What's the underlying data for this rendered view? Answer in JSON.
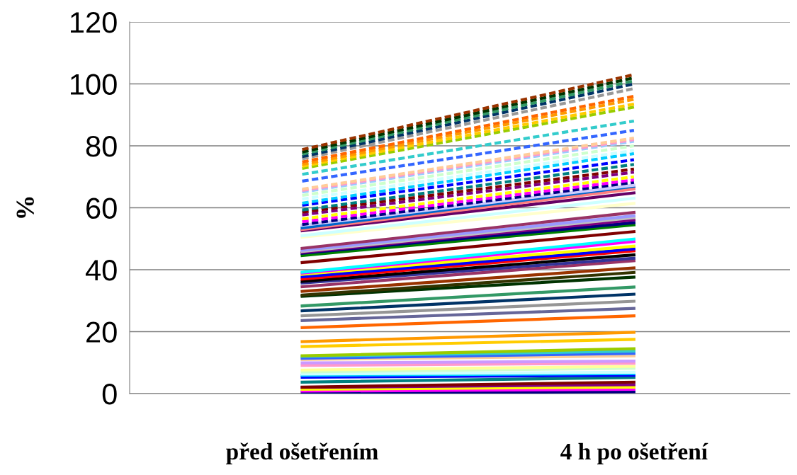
{
  "chart_data": {
    "type": "line",
    "ylabel": "%",
    "categories": [
      "před ošetřením",
      "4 h po ošetření"
    ],
    "ylim": [
      0,
      120
    ],
    "yticks": [
      0,
      20,
      40,
      60,
      80,
      100,
      120
    ],
    "grid": "y",
    "legend": false,
    "marker": "none",
    "line_style": "solid",
    "series": [
      {
        "color": "#000080",
        "values": [
          0.2,
          0.6
        ]
      },
      {
        "color": "#ff00ff",
        "values": [
          0.8,
          1.4
        ]
      },
      {
        "color": "#ffff00",
        "values": [
          1.4,
          2.1
        ]
      },
      {
        "color": "#800080",
        "values": [
          2.0,
          2.9
        ]
      },
      {
        "color": "#800000",
        "values": [
          2.1,
          3.7
        ]
      },
      {
        "color": "#008080",
        "values": [
          3.7,
          5.2
        ]
      },
      {
        "color": "#0000ff",
        "values": [
          5.3,
          5.9
        ]
      },
      {
        "color": "#00ccff",
        "values": [
          5.9,
          6.5
        ]
      },
      {
        "color": "#ccffff",
        "values": [
          6.3,
          6.9
        ]
      },
      {
        "color": "#ccffcc",
        "values": [
          7.0,
          8.2
        ]
      },
      {
        "color": "#ffff99",
        "values": [
          7.6,
          8.8
        ]
      },
      {
        "color": "#ff99cc",
        "values": [
          9.1,
          9.8
        ]
      },
      {
        "color": "#cc99ff",
        "values": [
          9.9,
          10.5
        ]
      },
      {
        "color": "#ffcc99",
        "values": [
          11.0,
          12.2
        ]
      },
      {
        "color": "#3366ff",
        "values": [
          11.4,
          13.0
        ]
      },
      {
        "color": "#33cccc",
        "values": [
          12.0,
          13.7
        ]
      },
      {
        "color": "#99cc00",
        "values": [
          12.2,
          14.5
        ]
      },
      {
        "color": "#ffcc00",
        "values": [
          15.2,
          17.5
        ]
      },
      {
        "color": "#ff9900",
        "values": [
          16.8,
          19.8
        ]
      },
      {
        "color": "#ff6600",
        "values": [
          21.3,
          25.1
        ]
      },
      {
        "color": "#666699",
        "values": [
          23.6,
          27.5
        ]
      },
      {
        "color": "#969696",
        "values": [
          25.1,
          29.8
        ]
      },
      {
        "color": "#003366",
        "values": [
          26.7,
          32.1
        ]
      },
      {
        "color": "#339966",
        "values": [
          28.3,
          34.4
        ]
      },
      {
        "color": "#003300",
        "values": [
          31.4,
          37.6
        ]
      },
      {
        "color": "#333300",
        "values": [
          31.8,
          39.1
        ]
      },
      {
        "color": "#993300",
        "values": [
          33.0,
          40.6
        ]
      },
      {
        "color": "#993366",
        "values": [
          34.5,
          42.9
        ]
      },
      {
        "color": "#333399",
        "values": [
          35.7,
          43.7
        ]
      },
      {
        "color": "#000000",
        "values": [
          36.2,
          44.8
        ]
      },
      {
        "color": "#ff0000",
        "values": [
          37.0,
          46.1
        ]
      },
      {
        "color": "#0000ff",
        "values": [
          37.7,
          46.7
        ]
      },
      {
        "color": "#ffff00",
        "values": [
          38.5,
          47.6
        ]
      },
      {
        "color": "#ff00ff",
        "values": [
          38.9,
          49.1
        ]
      },
      {
        "color": "#00ffff",
        "values": [
          39.2,
          49.9
        ]
      },
      {
        "color": "#800000",
        "values": [
          42.3,
          52.3
        ]
      },
      {
        "color": "#008000",
        "values": [
          44.6,
          54.5
        ]
      },
      {
        "color": "#000080",
        "values": [
          45.3,
          55.2
        ]
      },
      {
        "color": "#800080",
        "values": [
          45.6,
          56.1
        ]
      },
      {
        "color": "#c0c0c0",
        "values": [
          45.9,
          56.8
        ]
      },
      {
        "color": "#9999ff",
        "values": [
          46.3,
          57.4
        ]
      },
      {
        "color": "#993366",
        "values": [
          46.9,
          58.5
        ]
      },
      {
        "color": "#ffffcc",
        "values": [
          50.5,
          61.4
        ]
      },
      {
        "color": "#ccffff",
        "values": [
          51.0,
          63.1
        ]
      },
      {
        "color": "#660066",
        "values": [
          52.6,
          64.8
        ]
      },
      {
        "color": "#ff8080",
        "values": [
          53.0,
          66.1
        ]
      },
      {
        "color": "#0066cc",
        "values": [
          53.5,
          66.9
        ]
      },
      {
        "color": "#ccccff",
        "values": [
          54.3,
          67.3
        ]
      },
      {
        "color": "#000080",
        "line_style": "dashed",
        "values": [
          54.6,
          68.2
        ]
      },
      {
        "color": "#ff00ff",
        "line_style": "dashed",
        "values": [
          55.5,
          69.0
        ]
      },
      {
        "color": "#ffff00",
        "line_style": "dashed",
        "values": [
          56.4,
          70.0
        ]
      },
      {
        "color": "#800080",
        "line_style": "dashed",
        "values": [
          57.7,
          71.5
        ]
      },
      {
        "color": "#800000",
        "line_style": "dashed",
        "values": [
          58.6,
          72.5
        ]
      },
      {
        "color": "#008080",
        "line_style": "dashed",
        "values": [
          59.3,
          74.0
        ]
      },
      {
        "color": "#0000ff",
        "line_style": "dashed",
        "values": [
          60.8,
          75.5
        ]
      },
      {
        "color": "#00ccff",
        "line_style": "dashed",
        "values": [
          61.5,
          77.5
        ]
      },
      {
        "color": "#ccffff",
        "line_style": "dashed",
        "values": [
          62.8,
          78.5
        ]
      },
      {
        "color": "#ccffcc",
        "line_style": "dashed",
        "values": [
          64.0,
          80.0
        ]
      },
      {
        "color": "#99ccff",
        "line_style": "dashed",
        "values": [
          65.1,
          81.5
        ]
      },
      {
        "color": "#ff99cc",
        "line_style": "dashed",
        "values": [
          65.6,
          82.0
        ]
      },
      {
        "color": "#ffcc99",
        "line_style": "dashed",
        "values": [
          66.0,
          82.5
        ]
      },
      {
        "color": "#3366ff",
        "line_style": "dashed",
        "values": [
          68.6,
          85.0
        ]
      },
      {
        "color": "#33cccc",
        "line_style": "dashed",
        "values": [
          70.8,
          88.0
        ]
      },
      {
        "color": "#99cc00",
        "line_style": "dashed",
        "values": [
          72.7,
          92.5
        ]
      },
      {
        "color": "#ffcc00",
        "line_style": "dashed",
        "values": [
          73.4,
          93.5
        ]
      },
      {
        "color": "#ff9900",
        "line_style": "dashed",
        "values": [
          74.0,
          95.0
        ]
      },
      {
        "color": "#ff6600",
        "line_style": "dashed",
        "values": [
          74.8,
          96.0
        ]
      },
      {
        "color": "#999999",
        "line_style": "dashed",
        "values": [
          75.8,
          98.5
        ]
      },
      {
        "color": "#003366",
        "line_style": "dashed",
        "values": [
          76.5,
          100.0
        ]
      },
      {
        "color": "#339966",
        "line_style": "dashed",
        "values": [
          77.3,
          101.0
        ]
      },
      {
        "color": "#003300",
        "line_style": "dashed",
        "values": [
          78.0,
          102.0
        ]
      },
      {
        "color": "#993300",
        "line_style": "dashed",
        "values": [
          78.8,
          103.0
        ]
      }
    ]
  }
}
